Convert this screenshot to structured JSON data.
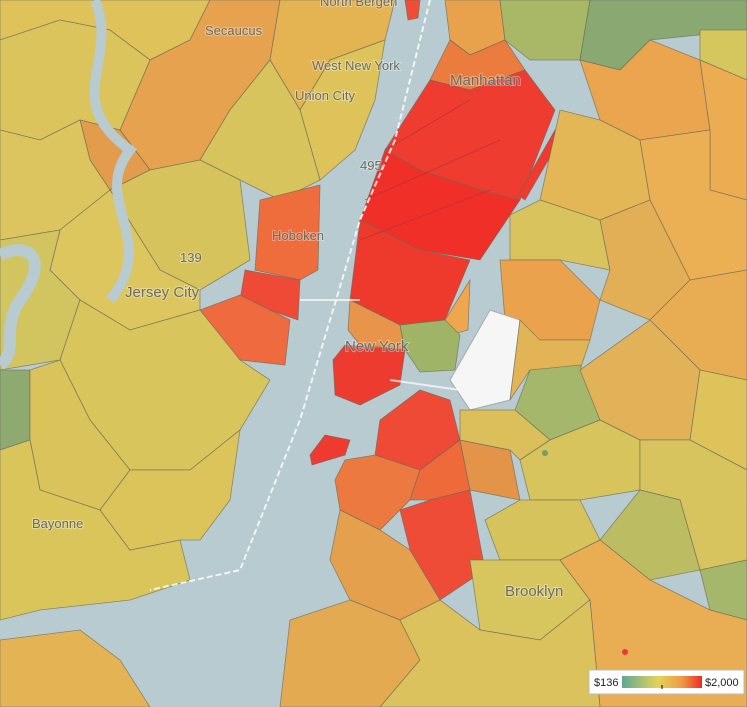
{
  "places": [
    {
      "label": "North Bergen"
    },
    {
      "label": "Secaucus"
    },
    {
      "label": "West New York"
    },
    {
      "label": "Union City"
    },
    {
      "label": "Manhattan"
    },
    {
      "label": "Hoboken"
    },
    {
      "label": "Jersey City"
    },
    {
      "label": "New York"
    },
    {
      "label": "Bayonne"
    },
    {
      "label": "Brooklyn"
    }
  ],
  "routes": [
    {
      "label": "139"
    },
    {
      "label": "495"
    }
  ],
  "legend": {
    "min_label": "$136",
    "max_label": "$2,000"
  }
}
